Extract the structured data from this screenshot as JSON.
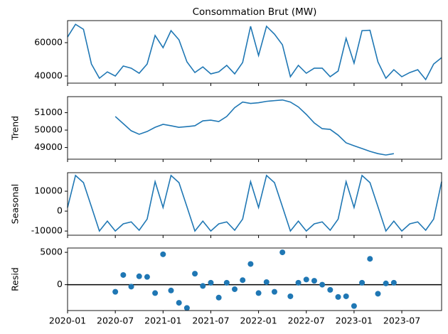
{
  "chart_data": [
    {
      "type": "line",
      "title": "Consommation Brut (MW)",
      "x": [
        "2020-01",
        "2020-02",
        "2020-03",
        "2020-04",
        "2020-05",
        "2020-06",
        "2020-07",
        "2020-08",
        "2020-09",
        "2020-10",
        "2020-11",
        "2020-12",
        "2021-01",
        "2021-02",
        "2021-03",
        "2021-04",
        "2021-05",
        "2021-06",
        "2021-07",
        "2021-08",
        "2021-09",
        "2021-10",
        "2021-11",
        "2021-12",
        "2022-01",
        "2022-02",
        "2022-03",
        "2022-04",
        "2022-05",
        "2022-06",
        "2022-07",
        "2022-08",
        "2022-09",
        "2022-10",
        "2022-11",
        "2022-12",
        "2023-01",
        "2023-02",
        "2023-03",
        "2023-04",
        "2023-05",
        "2023-06",
        "2023-07",
        "2023-08",
        "2023-09",
        "2023-10",
        "2023-11",
        "2023-12"
      ],
      "series": [
        {
          "color": "#1f77b4",
          "values": [
            63400,
            71000,
            68000,
            47200,
            38700,
            42500,
            40000,
            46000,
            44700,
            41700,
            47200,
            64300,
            57000,
            67200,
            61700,
            48500,
            42100,
            45500,
            41300,
            42500,
            46400,
            41300,
            48100,
            69800,
            52300,
            69800,
            65100,
            58700,
            39600,
            46400,
            41700,
            44700,
            44700,
            39600,
            43000,
            62600,
            47700,
            67200,
            67400,
            48500,
            38700,
            43800,
            39600,
            42100,
            43800,
            37900,
            47200,
            51000
          ]
        }
      ],
      "xlim": [
        "2020-01",
        "2023-12"
      ],
      "ylim": [
        35750,
        73200
      ],
      "yticks": [
        40000,
        60000
      ]
    },
    {
      "type": "line",
      "ylabel": "Trend",
      "x": [
        "2020-01",
        "2020-02",
        "2020-03",
        "2020-04",
        "2020-05",
        "2020-06",
        "2020-07",
        "2020-08",
        "2020-09",
        "2020-10",
        "2020-11",
        "2020-12",
        "2021-01",
        "2021-02",
        "2021-03",
        "2021-04",
        "2021-05",
        "2021-06",
        "2021-07",
        "2021-08",
        "2021-09",
        "2021-10",
        "2021-11",
        "2021-12",
        "2022-01",
        "2022-02",
        "2022-03",
        "2022-04",
        "2022-05",
        "2022-06",
        "2022-07",
        "2022-08",
        "2022-09",
        "2022-10",
        "2022-11",
        "2022-12",
        "2023-01",
        "2023-02",
        "2023-03",
        "2023-04",
        "2023-05",
        "2023-06",
        "2023-07",
        "2023-08",
        "2023-09",
        "2023-10",
        "2023-11",
        "2023-12"
      ],
      "series": [
        {
          "color": "#1f77b4",
          "values": [
            null,
            null,
            null,
            null,
            null,
            null,
            50780,
            50370,
            49960,
            49760,
            49920,
            50160,
            50330,
            50250,
            50160,
            50200,
            50250,
            50530,
            50570,
            50490,
            50780,
            51290,
            51610,
            51530,
            51570,
            51650,
            51690,
            51730,
            51610,
            51330,
            50900,
            50410,
            50080,
            50040,
            49710,
            49270,
            49100,
            48940,
            48780,
            48650,
            48570,
            48650,
            null,
            null,
            null,
            null,
            null,
            null
          ]
        }
      ],
      "xlim": [
        "2020-01",
        "2023-12"
      ],
      "ylim": [
        48330,
        51920
      ],
      "yticks": [
        49000,
        50000,
        51000
      ]
    },
    {
      "type": "line",
      "ylabel": "Seasonal",
      "x": [
        "2020-01",
        "2020-02",
        "2020-03",
        "2020-04",
        "2020-05",
        "2020-06",
        "2020-07",
        "2020-08",
        "2020-09",
        "2020-10",
        "2020-11",
        "2020-12",
        "2021-01",
        "2021-02",
        "2021-03",
        "2021-04",
        "2021-05",
        "2021-06",
        "2021-07",
        "2021-08",
        "2021-09",
        "2021-10",
        "2021-11",
        "2021-12",
        "2022-01",
        "2022-02",
        "2022-03",
        "2022-04",
        "2022-05",
        "2022-06",
        "2022-07",
        "2022-08",
        "2022-09",
        "2022-10",
        "2022-11",
        "2022-12",
        "2023-01",
        "2023-02",
        "2023-03",
        "2023-04",
        "2023-05",
        "2023-06",
        "2023-07",
        "2023-08",
        "2023-09",
        "2023-10",
        "2023-11",
        "2023-12"
      ],
      "series": [
        {
          "color": "#1f77b4",
          "values": [
            1800,
            17900,
            14300,
            2200,
            -10000,
            -5000,
            -10000,
            -6400,
            -5400,
            -9600,
            -4000,
            14800,
            1800,
            17900,
            14300,
            2200,
            -10000,
            -5000,
            -10000,
            -6400,
            -5400,
            -9600,
            -4000,
            14800,
            1800,
            17900,
            14300,
            2200,
            -10000,
            -5000,
            -10000,
            -6400,
            -5400,
            -9600,
            -4000,
            14800,
            1800,
            17900,
            14300,
            2200,
            -10000,
            -5000,
            -10000,
            -6400,
            -5400,
            -9600,
            -4000,
            14800
          ]
        }
      ],
      "xlim": [
        "2020-01",
        "2023-12"
      ],
      "ylim": [
        -12100,
        19300
      ],
      "yticks": [
        -10000,
        0,
        10000
      ]
    },
    {
      "type": "scatter",
      "ylabel": "Resid",
      "x": [
        "2020-01",
        "2020-02",
        "2020-03",
        "2020-04",
        "2020-05",
        "2020-06",
        "2020-07",
        "2020-08",
        "2020-09",
        "2020-10",
        "2020-11",
        "2020-12",
        "2021-01",
        "2021-02",
        "2021-03",
        "2021-04",
        "2021-05",
        "2021-06",
        "2021-07",
        "2021-08",
        "2021-09",
        "2021-10",
        "2021-11",
        "2021-12",
        "2022-01",
        "2022-02",
        "2022-03",
        "2022-04",
        "2022-05",
        "2022-06",
        "2022-07",
        "2022-08",
        "2022-09",
        "2022-10",
        "2022-11",
        "2022-12",
        "2023-01",
        "2023-02",
        "2023-03",
        "2023-04",
        "2023-05",
        "2023-06",
        "2023-07",
        "2023-08",
        "2023-09",
        "2023-10",
        "2023-11",
        "2023-12"
      ],
      "series": [
        {
          "color": "#1f77b4",
          "values": [
            null,
            null,
            null,
            null,
            null,
            null,
            -1100,
            1500,
            -300,
            1300,
            1200,
            -1300,
            4700,
            -900,
            -2800,
            -3600,
            1700,
            -200,
            300,
            -2000,
            300,
            -700,
            700,
            3200,
            -1300,
            400,
            -1100,
            5000,
            -1800,
            300,
            800,
            600,
            0,
            -800,
            -1900,
            -1800,
            -3300,
            300,
            4000,
            -1400,
            200,
            300,
            null,
            null,
            null,
            null,
            null,
            null
          ]
        }
      ],
      "hline": 0,
      "xlim": [
        "2020-01",
        "2023-12"
      ],
      "ylim": [
        -4000,
        5670
      ],
      "yticks": [
        0,
        5000
      ],
      "xticks": [
        "2020-01",
        "2020-07",
        "2021-01",
        "2021-07",
        "2022-01",
        "2022-07",
        "2023-01",
        "2023-07"
      ]
    }
  ]
}
